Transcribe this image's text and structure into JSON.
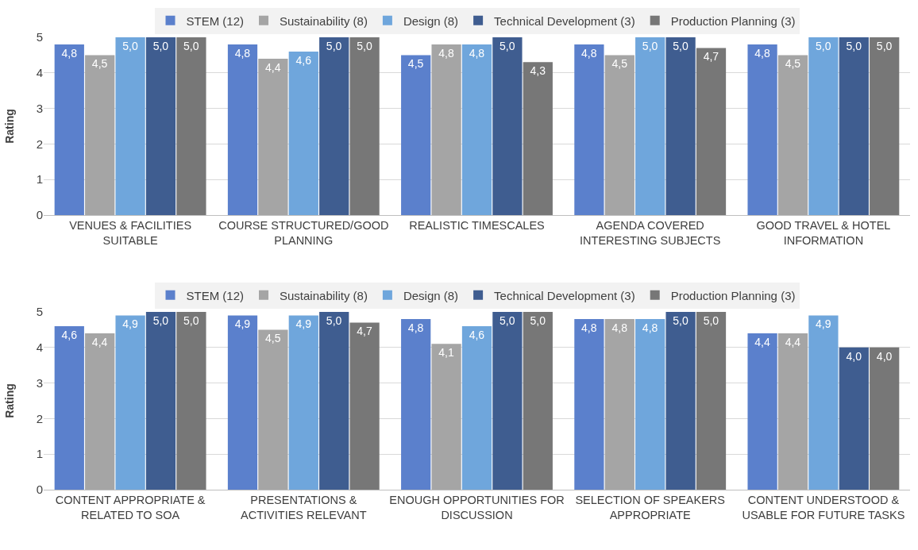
{
  "chart_data": [
    {
      "type": "bar",
      "ylabel": "Rating",
      "categories": [
        "VENUES & FACILITIES SUITABLE",
        "COURSE STRUCTURED/GOOD PLANNING",
        "REALISTIC TIMESCALES",
        "AGENDA COVERED INTERESTING SUBJECTS",
        "GOOD TRAVEL & HOTEL INFORMATION"
      ],
      "series": [
        {
          "name": "STEM (12)",
          "color": "#5b80cc",
          "values": [
            4.8,
            4.8,
            4.5,
            4.8,
            4.8
          ],
          "value_labels": [
            "4,8",
            "4,8",
            "4,5",
            "4,8",
            "4,8"
          ]
        },
        {
          "name": "Sustainability (8)",
          "color": "#a5a5a5",
          "values": [
            4.5,
            4.4,
            4.8,
            4.5,
            4.5
          ],
          "value_labels": [
            "4,5",
            "4,4",
            "4,8",
            "4,5",
            "4,5"
          ]
        },
        {
          "name": "Design (8)",
          "color": "#6fa6dc",
          "values": [
            5.0,
            4.6,
            4.8,
            5.0,
            5.0
          ],
          "value_labels": [
            "5,0",
            "4,6",
            "4,8",
            "5,0",
            "5,0"
          ]
        },
        {
          "name": "Technical Development (3)",
          "color": "#3f5d90",
          "values": [
            5.0,
            5.0,
            5.0,
            5.0,
            5.0
          ],
          "value_labels": [
            "5,0",
            "5,0",
            "5,0",
            "5,0",
            "5,0"
          ]
        },
        {
          "name": "Production Planning (3)",
          "color": "#777777",
          "values": [
            5.0,
            5.0,
            4.3,
            4.7,
            5.0
          ],
          "value_labels": [
            "5,0",
            "5,0",
            "4,3",
            "4,7",
            "5,0"
          ]
        }
      ],
      "ylim": [
        0,
        5
      ],
      "yticks": [
        0,
        1,
        2,
        3,
        4,
        5
      ],
      "grid": "y",
      "legend": "top"
    },
    {
      "type": "bar",
      "ylabel": "Rating",
      "categories": [
        "CONTENT APPROPRIATE & RELATED TO SOA",
        "PRESENTATIONS & ACTIVITIES RELEVANT",
        "ENOUGH OPPORTUNITIES FOR DISCUSSION",
        "SELECTION OF SPEAKERS APPROPRIATE",
        "CONTENT UNDERSTOOD & USABLE FOR FUTURE TASKS"
      ],
      "series": [
        {
          "name": "STEM (12)",
          "color": "#5b80cc",
          "values": [
            4.6,
            4.9,
            4.8,
            4.8,
            4.4
          ],
          "value_labels": [
            "4,6",
            "4,9",
            "4,8",
            "4,8",
            "4,4"
          ]
        },
        {
          "name": "Sustainability (8)",
          "color": "#a5a5a5",
          "values": [
            4.4,
            4.5,
            4.1,
            4.8,
            4.4
          ],
          "value_labels": [
            "4,4",
            "4,5",
            "4,1",
            "4,8",
            "4,4"
          ]
        },
        {
          "name": "Design (8)",
          "color": "#6fa6dc",
          "values": [
            4.9,
            4.9,
            4.6,
            4.8,
            4.9
          ],
          "value_labels": [
            "4,9",
            "4,9",
            "4,6",
            "4,8",
            "4,9"
          ]
        },
        {
          "name": "Technical Development (3)",
          "color": "#3f5d90",
          "values": [
            5.0,
            5.0,
            5.0,
            5.0,
            4.0
          ],
          "value_labels": [
            "5,0",
            "5,0",
            "5,0",
            "5,0",
            "4,0"
          ]
        },
        {
          "name": "Production Planning (3)",
          "color": "#777777",
          "values": [
            5.0,
            4.7,
            5.0,
            5.0,
            4.0
          ],
          "value_labels": [
            "5,0",
            "4,7",
            "5,0",
            "5,0",
            "4,0"
          ]
        }
      ],
      "ylim": [
        0,
        5
      ],
      "yticks": [
        0,
        1,
        2,
        3,
        4,
        5
      ],
      "grid": "y",
      "legend": "top"
    }
  ]
}
